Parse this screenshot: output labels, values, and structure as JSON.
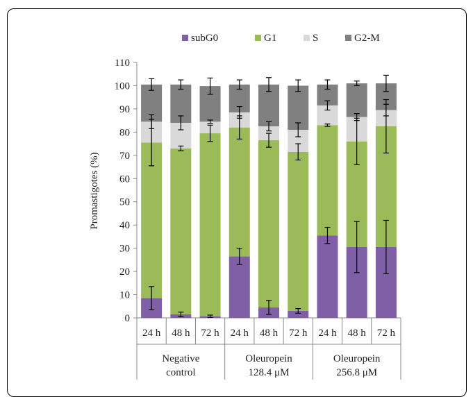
{
  "chart_data": {
    "type": "bar",
    "stacked": true,
    "ylabel": "Promastigotes  (%)",
    "ylim": [
      0,
      110
    ],
    "yticks": [
      0,
      10,
      20,
      30,
      40,
      50,
      60,
      70,
      80,
      90,
      100,
      110
    ],
    "categories": [
      "24 h",
      "48 h",
      "72 h",
      "24 h",
      "48 h",
      "72 h",
      "24 h",
      "48 h",
      "72 h"
    ],
    "groups": [
      {
        "label_line1": "Negative",
        "label_line2": "control"
      },
      {
        "label_line1": "Oleuropein",
        "label_line2": "128.4 μM"
      },
      {
        "label_line1": "Oleuropein",
        "label_line2": "256.8 μM"
      }
    ],
    "legend_position": "top",
    "series": [
      {
        "name": "subG0",
        "color": "#7f5fa6",
        "values": [
          8.5,
          1.5,
          0.7,
          26.5,
          4.5,
          3.0,
          35.5,
          30.5,
          30.5
        ],
        "errors": [
          5.0,
          1.0,
          0.5,
          3.5,
          3.0,
          1.0,
          3.5,
          11.0,
          11.5
        ]
      },
      {
        "name": "G1",
        "color": "#9bbb59",
        "values": [
          67.0,
          71.5,
          78.8,
          55.5,
          72.0,
          68.5,
          47.5,
          45.5,
          52.0
        ],
        "errors": [
          10.0,
          1.0,
          3.5,
          5.0,
          3.0,
          3.5,
          0.5,
          10.0,
          11.5
        ]
      },
      {
        "name": "S",
        "color": "#d9d9d9",
        "values": [
          9.0,
          11.0,
          5.0,
          6.5,
          6.0,
          9.5,
          8.5,
          10.5,
          7.0
        ],
        "errors": [
          3.0,
          3.0,
          0.7,
          2.5,
          2.0,
          3.0,
          2.0,
          1.5,
          2.5
        ]
      },
      {
        "name": "G2-M",
        "color": "#808080",
        "values": [
          16.0,
          16.5,
          15.3,
          12.0,
          18.0,
          19.0,
          9.0,
          14.5,
          11.5
        ],
        "errors": [
          2.5,
          2.0,
          3.5,
          2.0,
          3.0,
          2.5,
          2.0,
          1.0,
          3.5
        ]
      }
    ]
  }
}
